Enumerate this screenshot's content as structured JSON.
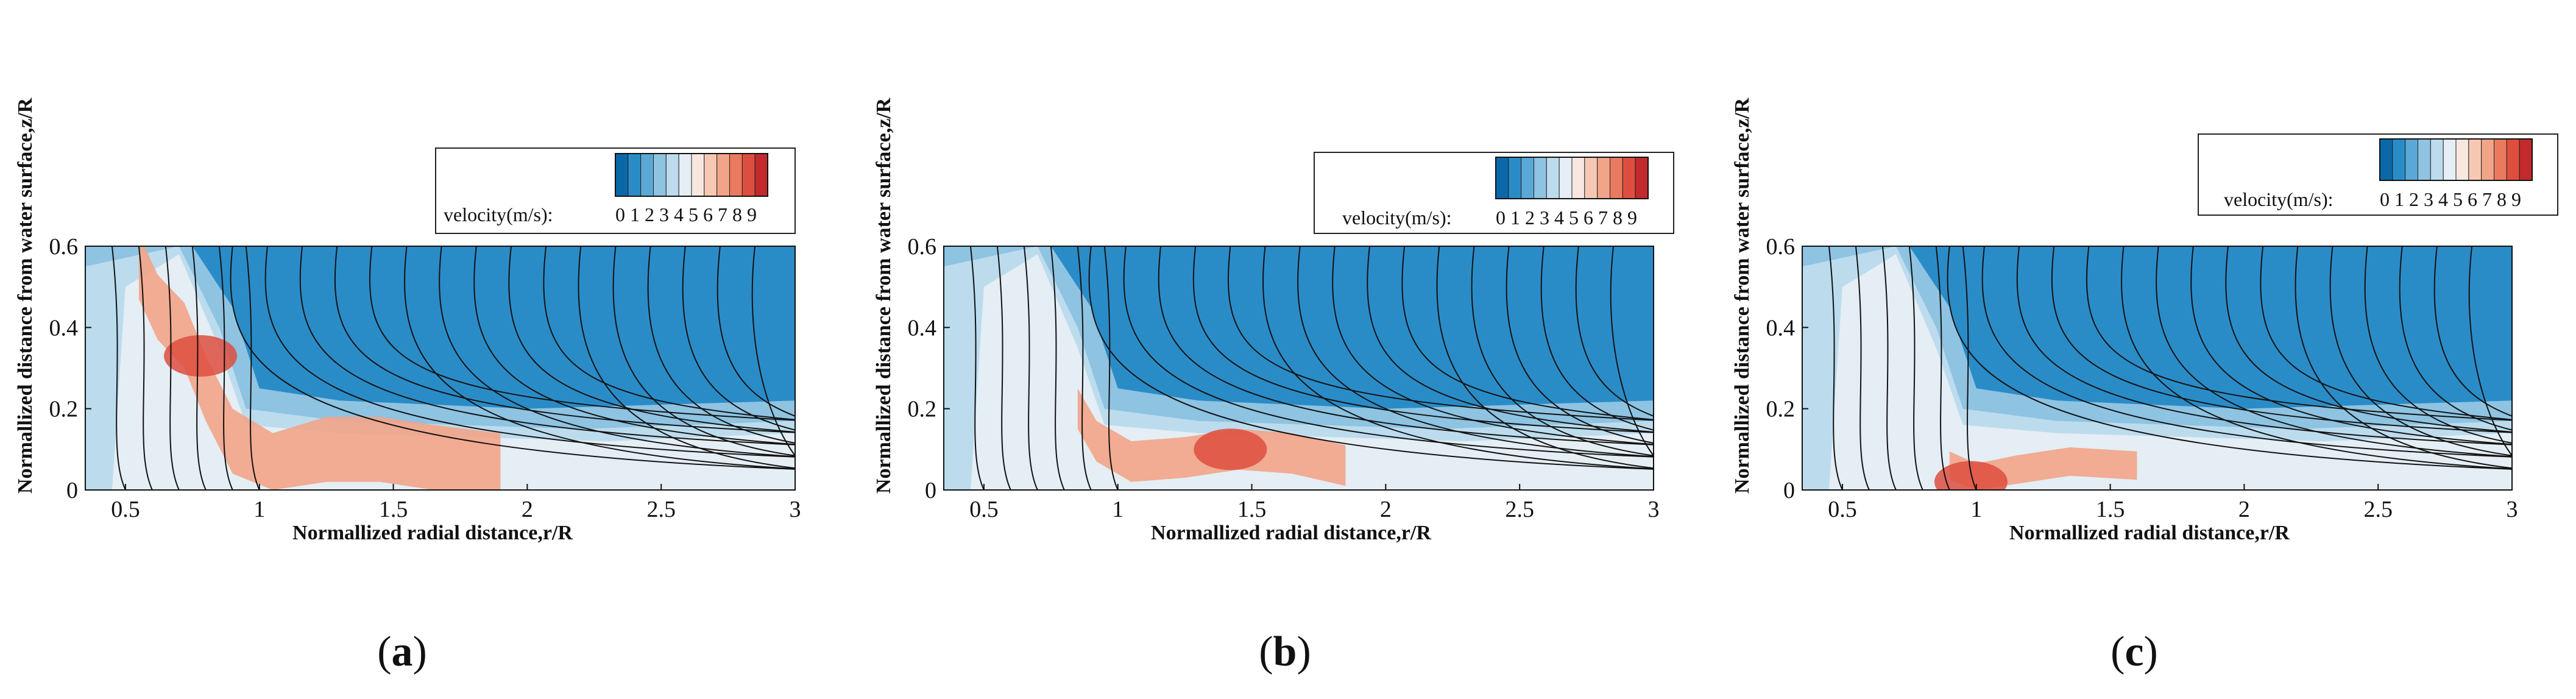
{
  "colorbar": {
    "label": "velocity(m/s):",
    "ticks": [
      "0",
      "1",
      "2",
      "3",
      "4",
      "5",
      "6",
      "7",
      "8",
      "9"
    ],
    "colors": [
      "#0b68a8",
      "#2a8cc7",
      "#5aa8d6",
      "#8ec3e2",
      "#bcdcee",
      "#e4eef4",
      "#f7e7df",
      "#f6c8b4",
      "#f2a488",
      "#ea7a5e",
      "#de4e3e",
      "#c22a2e"
    ]
  },
  "chart_data": [
    {
      "type": "contour",
      "panel_label": "(a)",
      "xlabel": "Normallized radial distance,r/R",
      "ylabel": "Normallized distance from water surface,z/R",
      "xlim": [
        0.35,
        3
      ],
      "ylim": [
        0,
        0.6
      ],
      "xticks": [
        "0.5",
        "1",
        "1.5",
        "2",
        "2.5",
        "3"
      ],
      "yticks": [
        "0",
        "0.2",
        "0.4",
        "0.6"
      ],
      "xtick_values": [
        0.5,
        1,
        1.5,
        2,
        2.5,
        3
      ],
      "ytick_values": [
        0,
        0.2,
        0.4,
        0.6
      ],
      "colorbar_range": [
        0,
        9
      ],
      "high_velocity_band": [
        [
          0.55,
          0.55
        ],
        [
          0.62,
          0.45
        ],
        [
          0.72,
          0.38
        ],
        [
          0.8,
          0.25
        ],
        [
          0.9,
          0.12
        ],
        [
          1.05,
          0.06
        ],
        [
          1.25,
          0.1
        ],
        [
          1.45,
          0.1
        ],
        [
          1.65,
          0.08
        ],
        [
          1.9,
          0.06
        ]
      ],
      "peak_velocity_region": [
        0.78,
        0.33
      ]
    },
    {
      "type": "contour",
      "panel_label": "(b)",
      "xlabel": "Normallized radial distance,r/R",
      "ylabel": "Normallized distance from water surface,z/R",
      "xlim": [
        0.35,
        3
      ],
      "ylim": [
        0,
        0.6
      ],
      "xticks": [
        "0.5",
        "1",
        "1.5",
        "2",
        "2.5",
        "3"
      ],
      "yticks": [
        "0",
        "0.2",
        "0.4",
        "0.6"
      ],
      "xtick_values": [
        0.5,
        1,
        1.5,
        2,
        2.5,
        3
      ],
      "ytick_values": [
        0,
        0.2,
        0.4,
        0.6
      ],
      "colorbar_range": [
        0,
        9
      ],
      "high_velocity_band": [
        [
          0.85,
          0.2
        ],
        [
          0.92,
          0.12
        ],
        [
          1.05,
          0.07
        ],
        [
          1.25,
          0.08
        ],
        [
          1.45,
          0.1
        ],
        [
          1.65,
          0.09
        ],
        [
          1.85,
          0.06
        ]
      ],
      "peak_velocity_region": [
        1.42,
        0.1
      ]
    },
    {
      "type": "contour",
      "panel_label": "(c)",
      "xlabel": "Normallized radial distance,r/R",
      "ylabel": "Normallized distance from water surface,z/R",
      "xlim": [
        0.35,
        3
      ],
      "ylim": [
        0,
        0.6
      ],
      "xticks": [
        "0.5",
        "1",
        "1.5",
        "2",
        "2.5",
        "3"
      ],
      "yticks": [
        "0",
        "0.2",
        "0.4",
        "0.6"
      ],
      "xtick_values": [
        0.5,
        1,
        1.5,
        2,
        2.5,
        3
      ],
      "ytick_values": [
        0,
        0.2,
        0.4,
        0.6
      ],
      "colorbar_range": [
        0,
        9
      ],
      "high_velocity_band": [
        [
          0.9,
          0.06
        ],
        [
          1.0,
          0.03
        ],
        [
          1.15,
          0.05
        ],
        [
          1.35,
          0.07
        ],
        [
          1.6,
          0.06
        ]
      ],
      "peak_velocity_region": [
        0.98,
        0.02
      ]
    }
  ]
}
